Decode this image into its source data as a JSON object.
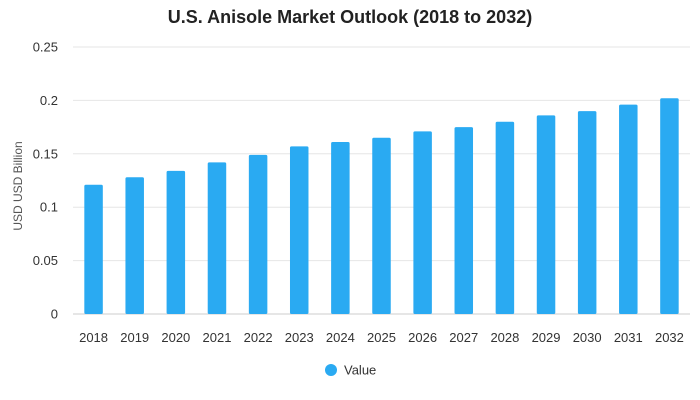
{
  "chart_data": {
    "type": "bar",
    "title": "U.S. Anisole Market Outlook (2018 to 2032)",
    "xlabel": "",
    "ylabel": "USD USD Billion",
    "categories": [
      "2018",
      "2019",
      "2020",
      "2021",
      "2022",
      "2023",
      "2024",
      "2025",
      "2026",
      "2027",
      "2028",
      "2029",
      "2030",
      "2031",
      "2032"
    ],
    "series": [
      {
        "name": "Value",
        "color": "#2aaaf2",
        "values": [
          0.121,
          0.128,
          0.134,
          0.142,
          0.149,
          0.157,
          0.161,
          0.165,
          0.171,
          0.175,
          0.18,
          0.186,
          0.19,
          0.196,
          0.202
        ]
      }
    ],
    "ylim": [
      0,
      0.25
    ],
    "yticks": [
      "0",
      "0.05",
      "0.1",
      "0.15",
      "0.2",
      "0.25"
    ],
    "grid": true,
    "legend_position": "bottom"
  }
}
